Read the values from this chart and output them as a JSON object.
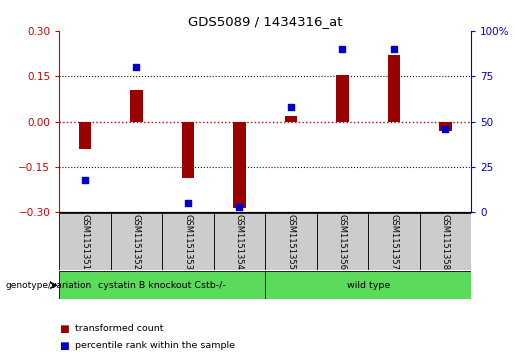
{
  "title": "GDS5089 / 1434316_at",
  "samples": [
    "GSM1151351",
    "GSM1151352",
    "GSM1151353",
    "GSM1151354",
    "GSM1151355",
    "GSM1151356",
    "GSM1151357",
    "GSM1151358"
  ],
  "transformed_count": [
    -0.09,
    0.105,
    -0.185,
    -0.285,
    0.02,
    0.155,
    0.22,
    -0.03
  ],
  "percentile_rank": [
    18,
    80,
    5,
    3,
    58,
    90,
    90,
    46
  ],
  "ylim_left": [
    -0.3,
    0.3
  ],
  "ylim_right": [
    0,
    100
  ],
  "yticks_left": [
    -0.3,
    -0.15,
    0,
    0.15,
    0.3
  ],
  "yticks_right": [
    0,
    25,
    50,
    75,
    100
  ],
  "ytick_labels_right": [
    "0",
    "25",
    "50",
    "75",
    "100%"
  ],
  "bar_color": "#990000",
  "scatter_color": "#0000cc",
  "group1_label": "cystatin B knockout Cstb-/-",
  "group2_label": "wild type",
  "group1_color": "#5adb5a",
  "group2_color": "#5adb5a",
  "genotype_label": "genotype/variation",
  "legend1_label": "transformed count",
  "legend2_label": "percentile rank within the sample",
  "hline_color": "#cc0000",
  "dotted_color": "#111111",
  "bar_width": 0.25,
  "scatter_size": 18,
  "sample_box_color": "#cccccc",
  "left_axis_color": "#cc0000",
  "right_axis_color": "#0000cc"
}
